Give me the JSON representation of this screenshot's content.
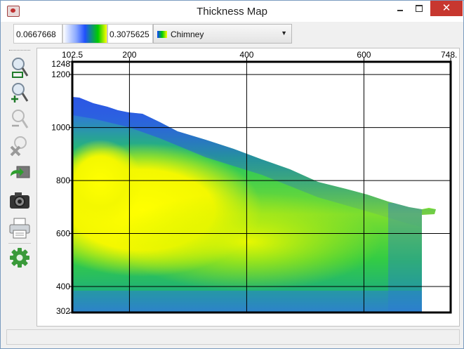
{
  "window": {
    "title": "Thickness Map",
    "minimize_label": "",
    "maximize_label": "",
    "close_label": "✕"
  },
  "colorbar": {
    "min_value": "0.0667668",
    "max_value": "0.3075625",
    "colormap_name": "Chimney"
  },
  "toolbar": {
    "items": [
      "zoom-to-fit",
      "zoom-rectangle",
      "zoom-in",
      "zoom-out",
      "cancel-zoom",
      "go-to-scene",
      "save-snapshot",
      "print",
      "settings"
    ]
  },
  "chart_data": {
    "type": "heatmap",
    "title": "",
    "x_ticks": [
      "102.5",
      "200",
      "400",
      "600",
      "748."
    ],
    "y_ticks": [
      "1248",
      "1200",
      "1000",
      "800",
      "600",
      "400",
      "302"
    ],
    "xlim": [
      102.5,
      748
    ],
    "ylim": [
      302,
      1248
    ],
    "grid": true,
    "colormap": "Chimney",
    "value_range": [
      0.0667668,
      0.3075625
    ]
  }
}
